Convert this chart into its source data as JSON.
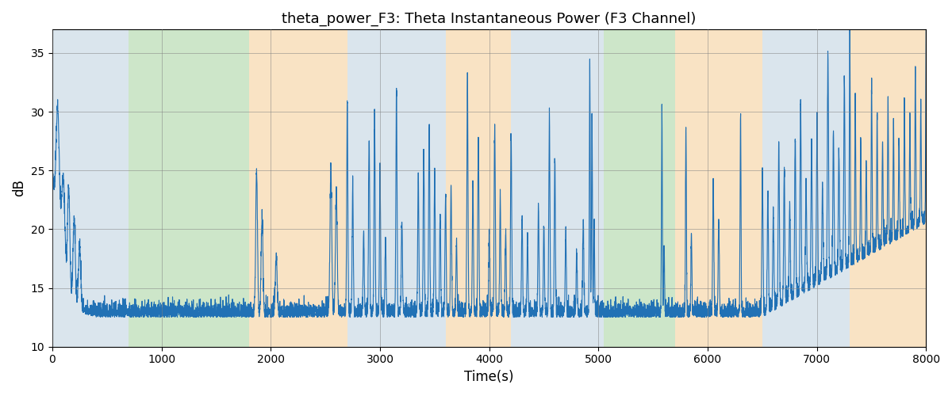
{
  "title": "theta_power_F3: Theta Instantaneous Power (F3 Channel)",
  "xlabel": "Time(s)",
  "ylabel": "dB",
  "xlim": [
    0,
    8000
  ],
  "ylim": [
    10,
    37
  ],
  "yticks": [
    10,
    15,
    20,
    25,
    30,
    35
  ],
  "line_color": "#2171b5",
  "line_width": 0.8,
  "figsize": [
    12,
    5
  ],
  "dpi": 100,
  "bg_regions": [
    {
      "xstart": 0,
      "xend": 700,
      "color": "#aec6d8",
      "alpha": 0.45
    },
    {
      "xstart": 700,
      "xend": 1800,
      "color": "#90c888",
      "alpha": 0.45
    },
    {
      "xstart": 1800,
      "xend": 2700,
      "color": "#f5c98a",
      "alpha": 0.5
    },
    {
      "xstart": 2700,
      "xend": 3600,
      "color": "#aec6d8",
      "alpha": 0.45
    },
    {
      "xstart": 3600,
      "xend": 4200,
      "color": "#f5c98a",
      "alpha": 0.5
    },
    {
      "xstart": 4200,
      "xend": 4900,
      "color": "#aec6d8",
      "alpha": 0.45
    },
    {
      "xstart": 4900,
      "xend": 5050,
      "color": "#aec6d8",
      "alpha": 0.45
    },
    {
      "xstart": 5050,
      "xend": 5700,
      "color": "#90c888",
      "alpha": 0.45
    },
    {
      "xstart": 5700,
      "xend": 6500,
      "color": "#f5c98a",
      "alpha": 0.5
    },
    {
      "xstart": 6500,
      "xend": 7300,
      "color": "#aec6d8",
      "alpha": 0.45
    },
    {
      "xstart": 7300,
      "xend": 8000,
      "color": "#f5c98a",
      "alpha": 0.5
    }
  ],
  "seed": 42,
  "n_points": 8000
}
